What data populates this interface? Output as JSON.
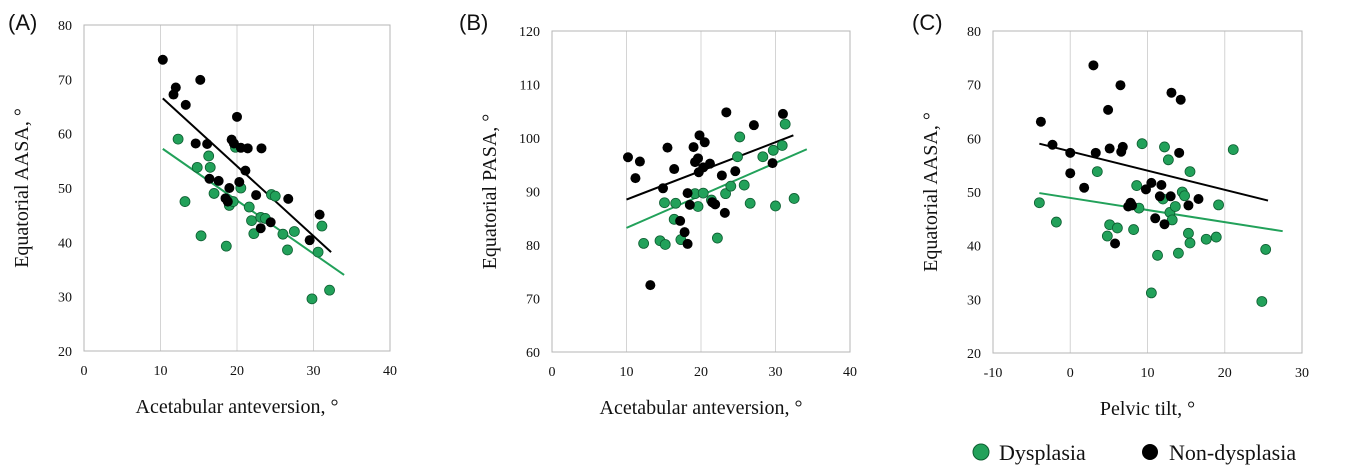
{
  "legend": {
    "items": [
      {
        "label": "Dysplasia",
        "color": "#22a15a"
      },
      {
        "label": "Non-dysplasia",
        "color": "#000000"
      }
    ]
  },
  "chart_data": [
    {
      "panel": "(A)",
      "type": "scatter",
      "xlabel": "Acetabular anteversion, °",
      "ylabel": "Equatorial AASA, °",
      "xlim": [
        0,
        40
      ],
      "ylim": [
        20,
        80
      ],
      "xticks": [
        0,
        10,
        20,
        30,
        40
      ],
      "yticks": [
        20,
        30,
        40,
        50,
        60,
        70,
        80
      ],
      "grid": "vertical",
      "series": [
        {
          "name": "Dysplasia",
          "color": "#22a15a",
          "points": [
            [
              12.3,
              59
            ],
            [
              13.2,
              47.5
            ],
            [
              14.8,
              53.8
            ],
            [
              15.3,
              41.2
            ],
            [
              16.3,
              55.9
            ],
            [
              16.5,
              53.8
            ],
            [
              17,
              49
            ],
            [
              18.6,
              39.3
            ],
            [
              19,
              46.8
            ],
            [
              19.5,
              47.5
            ],
            [
              19.8,
              57.5
            ],
            [
              20.5,
              50
            ],
            [
              21.6,
              46.5
            ],
            [
              21.9,
              44
            ],
            [
              22.2,
              41.6
            ],
            [
              23.1,
              44.6
            ],
            [
              23.7,
              44.4
            ],
            [
              24.5,
              48.8
            ],
            [
              25,
              48.5
            ],
            [
              26,
              41.5
            ],
            [
              26.6,
              38.6
            ],
            [
              27.5,
              42
            ],
            [
              29.8,
              29.6
            ],
            [
              30.6,
              38.2
            ],
            [
              31.1,
              43
            ],
            [
              32.1,
              31.2
            ]
          ],
          "trend": [
            [
              10.3,
              57.2
            ],
            [
              34,
              34
            ]
          ]
        },
        {
          "name": "Non-dysplasia",
          "color": "#000000",
          "points": [
            [
              10.3,
              73.6
            ],
            [
              11.7,
              67.2
            ],
            [
              12,
              68.5
            ],
            [
              13.3,
              65.3
            ],
            [
              14.6,
              58.2
            ],
            [
              15.2,
              69.9
            ],
            [
              16.1,
              58.1
            ],
            [
              16.4,
              51.7
            ],
            [
              17.6,
              51.3
            ],
            [
              18.5,
              48.1
            ],
            [
              18.8,
              47.5
            ],
            [
              19,
              50
            ],
            [
              19.3,
              58.9
            ],
            [
              19.6,
              58.2
            ],
            [
              20,
              63.1
            ],
            [
              20.3,
              51.1
            ],
            [
              20.5,
              57.4
            ],
            [
              21.1,
              53.2
            ],
            [
              21.4,
              57.3
            ],
            [
              22.5,
              48.7
            ],
            [
              23.1,
              42.6
            ],
            [
              23.2,
              57.3
            ],
            [
              24.4,
              43.7
            ],
            [
              26.7,
              48
            ],
            [
              29.5,
              40.4
            ],
            [
              30.8,
              45.1
            ]
          ],
          "trend": [
            [
              10.3,
              66.5
            ],
            [
              32.3,
              38.2
            ]
          ]
        }
      ]
    },
    {
      "panel": "(B)",
      "type": "scatter",
      "xlabel": "Acetabular anteversion, °",
      "ylabel": "Equatorial PASA, °",
      "xlim": [
        0,
        40
      ],
      "ylim": [
        60,
        120
      ],
      "xticks": [
        0,
        10,
        20,
        30,
        40
      ],
      "yticks": [
        60,
        70,
        80,
        90,
        100,
        110,
        120
      ],
      "grid": "vertical",
      "series": [
        {
          "name": "Dysplasia",
          "color": "#22a15a",
          "points": [
            [
              12.3,
              80.3
            ],
            [
              14.5,
              80.8
            ],
            [
              15.2,
              80.1
            ],
            [
              15.1,
              87.9
            ],
            [
              16.4,
              84.8
            ],
            [
              16.6,
              87.8
            ],
            [
              17.3,
              81
            ],
            [
              19.2,
              89.6
            ],
            [
              19.6,
              87.2
            ],
            [
              20.3,
              89.7
            ],
            [
              21.4,
              88.4
            ],
            [
              22.2,
              81.3
            ],
            [
              23.3,
              89.6
            ],
            [
              24,
              91
            ],
            [
              24.9,
              96.5
            ],
            [
              25.2,
              100.2
            ],
            [
              25.8,
              91.2
            ],
            [
              26.6,
              87.8
            ],
            [
              28.3,
              96.5
            ],
            [
              29.7,
              97.7
            ],
            [
              30,
              87.3
            ],
            [
              30.9,
              98.6
            ],
            [
              31.3,
              102.6
            ],
            [
              32.5,
              88.7
            ]
          ],
          "trend": [
            [
              10,
              83.2
            ],
            [
              34.2,
              97.9
            ]
          ]
        },
        {
          "name": "Non-dysplasia",
          "color": "#000000",
          "points": [
            [
              10.2,
              96.4
            ],
            [
              11.2,
              92.5
            ],
            [
              11.8,
              95.6
            ],
            [
              13.2,
              72.5
            ],
            [
              14.9,
              90.6
            ],
            [
              15.5,
              98.2
            ],
            [
              16.4,
              94.2
            ],
            [
              17.2,
              84.5
            ],
            [
              17.8,
              82.4
            ],
            [
              18.2,
              89.7
            ],
            [
              18.2,
              80.2
            ],
            [
              18.5,
              87.5
            ],
            [
              19,
              98.3
            ],
            [
              19.2,
              95.5
            ],
            [
              19.6,
              96.2
            ],
            [
              19.7,
              93.6
            ],
            [
              19.8,
              100.5
            ],
            [
              20.3,
              94.5
            ],
            [
              20.5,
              99.2
            ],
            [
              21.2,
              95.2
            ],
            [
              21.5,
              88
            ],
            [
              21.9,
              87.6
            ],
            [
              22.8,
              93
            ],
            [
              23.2,
              86
            ],
            [
              23.4,
              104.8
            ],
            [
              24.6,
              93.8
            ],
            [
              27.1,
              102.4
            ],
            [
              29.6,
              95.3
            ],
            [
              31,
              104.5
            ]
          ],
          "trend": [
            [
              10,
              88.5
            ],
            [
              32.4,
              100.5
            ]
          ]
        }
      ]
    },
    {
      "panel": "(C)",
      "type": "scatter",
      "xlabel": "Pelvic tilt, °",
      "ylabel": "Equatorial AASA, °",
      "xlim": [
        -10,
        30
      ],
      "ylim": [
        20,
        80
      ],
      "xticks": [
        -10,
        0,
        10,
        20,
        30
      ],
      "yticks": [
        20,
        30,
        40,
        50,
        60,
        70,
        80
      ],
      "grid": "vertical",
      "series": [
        {
          "name": "Dysplasia",
          "color": "#22a15a",
          "points": [
            [
              -4,
              48
            ],
            [
              -1.8,
              44.4
            ],
            [
              3.5,
              53.8
            ],
            [
              4.8,
              41.8
            ],
            [
              5.1,
              43.9
            ],
            [
              6.1,
              43.3
            ],
            [
              8.2,
              43
            ],
            [
              8.6,
              51.2
            ],
            [
              8.9,
              47
            ],
            [
              9.3,
              59
            ],
            [
              10.5,
              31.2
            ],
            [
              11.3,
              38.2
            ],
            [
              12,
              48.7
            ],
            [
              12.2,
              58.4
            ],
            [
              12.7,
              56
            ],
            [
              12.9,
              46.2
            ],
            [
              13.2,
              44.8
            ],
            [
              13.6,
              47.3
            ],
            [
              14,
              38.6
            ],
            [
              14.5,
              50
            ],
            [
              14.8,
              49.3
            ],
            [
              15.3,
              42.3
            ],
            [
              15.5,
              40.5
            ],
            [
              15.5,
              53.8
            ],
            [
              17.6,
              41.2
            ],
            [
              18.9,
              41.6
            ],
            [
              19.2,
              47.6
            ],
            [
              21.1,
              57.9
            ],
            [
              24.8,
              29.6
            ],
            [
              25.3,
              39.3
            ]
          ],
          "trend": [
            [
              -4,
              49.8
            ],
            [
              27.5,
              42.7
            ]
          ]
        },
        {
          "name": "Non-dysplasia",
          "color": "#000000",
          "points": [
            [
              -3.8,
              63.1
            ],
            [
              -2.3,
              58.8
            ],
            [
              0,
              53.5
            ],
            [
              0,
              57.3
            ],
            [
              1.8,
              50.8
            ],
            [
              3,
              73.6
            ],
            [
              3.3,
              57.3
            ],
            [
              4.9,
              65.3
            ],
            [
              5.1,
              58.1
            ],
            [
              5.8,
              40.4
            ],
            [
              6.5,
              69.9
            ],
            [
              6.6,
              57.5
            ],
            [
              6.8,
              58.4
            ],
            [
              7.5,
              47.3
            ],
            [
              7.8,
              48
            ],
            [
              8,
              47.5
            ],
            [
              9.8,
              50.5
            ],
            [
              10.5,
              51.7
            ],
            [
              11,
              45.1
            ],
            [
              11.6,
              49.2
            ],
            [
              11.8,
              51.3
            ],
            [
              12.2,
              44
            ],
            [
              13,
              49.2
            ],
            [
              13.1,
              68.5
            ],
            [
              14.1,
              57.3
            ],
            [
              14.3,
              67.2
            ],
            [
              15.3,
              47.5
            ],
            [
              16.6,
              48.7
            ]
          ],
          "trend": [
            [
              -4,
              59
            ],
            [
              25.6,
              48.4
            ]
          ]
        }
      ]
    }
  ]
}
